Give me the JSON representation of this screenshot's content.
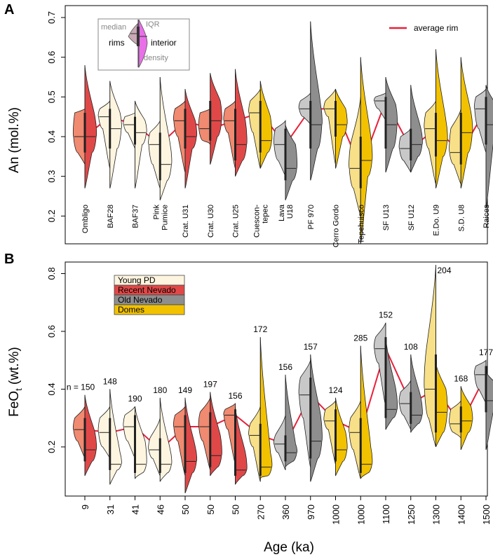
{
  "panels": {
    "a": {
      "letter": "A",
      "ylabel": "An (mol.%)",
      "yticks": [
        "0.2",
        "0.3",
        "0.4",
        "0.5",
        "0.6",
        "0.7"
      ]
    },
    "b": {
      "letter": "B",
      "ylabel_main": "FeO",
      "ylabel_sub": "t",
      "ylabel_tail": " (wt.%)",
      "yticks": [
        "0.2",
        "0.4",
        "0.6",
        "0.8"
      ]
    }
  },
  "xlabel": "Age (ka)",
  "inset_labels": {
    "median": "median",
    "iqr": "IQR",
    "rims": "rims",
    "interior": "interior",
    "density": "density"
  },
  "legend_rim": {
    "label": "average rim",
    "color": "#e8203a"
  },
  "legend_groups": [
    {
      "label": "Young PD",
      "color": "#fdf5e0"
    },
    {
      "label": "Recent Nevado",
      "color": "#e04848"
    },
    {
      "label": "Old Nevado",
      "color": "#8e8e8e"
    },
    {
      "label": "Domes",
      "color": "#f2c200"
    }
  ],
  "n_prefix": "n = ",
  "chart_data": [
    {
      "type": "violin",
      "panel": "A",
      "title": "",
      "xlabel": "",
      "ylabel": "An (mol.%)",
      "ylim": [
        0.13,
        0.73
      ],
      "grid": false,
      "legend": "top-right",
      "samples": [
        {
          "name": "Ombligo",
          "group": "Recent Nevado",
          "rim_median": 0.4,
          "rim_q1": 0.36,
          "rim_q3": 0.46,
          "rim_min": 0.33,
          "rim_max": 0.47,
          "int_median": 0.4,
          "int_q1": 0.36,
          "int_q3": 0.45,
          "int_min": 0.27,
          "int_max": 0.58
        },
        {
          "name": "BAF28",
          "group": "Young PD",
          "rim_median": 0.45,
          "rim_q1": 0.42,
          "rim_q3": 0.47,
          "rim_min": 0.32,
          "rim_max": 0.49,
          "int_median": 0.42,
          "int_q1": 0.37,
          "int_q3": 0.46,
          "int_min": 0.27,
          "int_max": 0.54
        },
        {
          "name": "BAF37",
          "group": "Young PD",
          "rim_median": 0.43,
          "rim_q1": 0.41,
          "rim_q3": 0.45,
          "rim_min": 0.37,
          "rim_max": 0.46,
          "int_median": 0.41,
          "int_q1": 0.38,
          "int_q3": 0.44,
          "int_min": 0.27,
          "int_max": 0.49
        },
        {
          "name": "Pink\nPumice",
          "group": "Young PD",
          "rim_median": 0.38,
          "rim_q1": 0.33,
          "rim_q3": 0.41,
          "rim_min": 0.27,
          "rim_max": 0.44,
          "int_median": 0.33,
          "int_q1": 0.29,
          "int_q3": 0.38,
          "int_min": 0.24,
          "int_max": 0.55
        },
        {
          "name": "Crat. U31",
          "group": "Recent Nevado",
          "rim_median": 0.44,
          "rim_q1": 0.4,
          "rim_q3": 0.47,
          "rim_min": 0.31,
          "rim_max": 0.49,
          "int_median": 0.4,
          "int_q1": 0.37,
          "int_q3": 0.44,
          "int_min": 0.27,
          "int_max": 0.52
        },
        {
          "name": "Crat. U30",
          "group": "Recent Nevado",
          "rim_median": 0.42,
          "rim_q1": 0.39,
          "rim_q3": 0.46,
          "rim_min": 0.38,
          "rim_max": 0.47,
          "int_median": 0.44,
          "int_q1": 0.4,
          "int_q3": 0.49,
          "int_min": 0.33,
          "int_max": 0.56
        },
        {
          "name": "Crat. U25",
          "group": "Recent Nevado",
          "rim_median": 0.44,
          "rim_q1": 0.41,
          "rim_q3": 0.47,
          "rim_min": 0.32,
          "rim_max": 0.49,
          "int_median": 0.38,
          "int_q1": 0.34,
          "int_q3": 0.44,
          "int_min": 0.3,
          "int_max": 0.57
        },
        {
          "name": "Cuescon-\ntepec",
          "group": "Domes",
          "rim_median": 0.46,
          "rim_q1": 0.41,
          "rim_q3": 0.49,
          "rim_min": 0.32,
          "rim_max": 0.52,
          "int_median": 0.39,
          "int_q1": 0.36,
          "int_q3": 0.45,
          "int_min": 0.32,
          "int_max": 0.54
        },
        {
          "name": "Lava\nU18",
          "group": "Old Nevado",
          "rim_median": 0.38,
          "rim_q1": 0.34,
          "rim_q3": 0.42,
          "rim_min": 0.3,
          "rim_max": 0.44,
          "int_median": 0.32,
          "int_q1": 0.29,
          "int_q3": 0.38,
          "int_min": 0.24,
          "int_max": 0.43
        },
        {
          "name": "PF 970",
          "group": "Old Nevado",
          "rim_median": 0.47,
          "rim_q1": 0.45,
          "rim_q3": 0.49,
          "rim_min": 0.43,
          "rim_max": 0.51,
          "int_median": 0.43,
          "int_q1": 0.37,
          "int_q3": 0.48,
          "int_min": 0.29,
          "int_max": 0.69
        },
        {
          "name": "Cerro Gordo",
          "group": "Domes",
          "rim_median": 0.47,
          "rim_q1": 0.45,
          "rim_q3": 0.49,
          "rim_min": 0.33,
          "rim_max": 0.52,
          "int_median": 0.43,
          "int_q1": 0.4,
          "int_q3": 0.47,
          "int_min": 0.32,
          "int_max": 0.52
        },
        {
          "name": "Tepehuisco",
          "group": "Domes",
          "rim_median": 0.32,
          "rim_q1": 0.27,
          "rim_q3": 0.38,
          "rim_min": 0.2,
          "rim_max": 0.5,
          "int_median": 0.34,
          "int_q1": 0.3,
          "int_q3": 0.4,
          "int_min": 0.13,
          "int_max": 0.6
        },
        {
          "name": "SF U13",
          "group": "Old Nevado",
          "rim_median": 0.49,
          "rim_q1": 0.47,
          "rim_q3": 0.5,
          "rim_min": 0.44,
          "rim_max": 0.51,
          "int_median": 0.43,
          "int_q1": 0.37,
          "int_q3": 0.48,
          "int_min": 0.31,
          "int_max": 0.55
        },
        {
          "name": "SF U12",
          "group": "Old Nevado",
          "rim_median": 0.37,
          "rim_q1": 0.34,
          "rim_q3": 0.4,
          "rim_min": 0.31,
          "rim_max": 0.42,
          "int_median": 0.38,
          "int_q1": 0.35,
          "int_q3": 0.42,
          "int_min": 0.31,
          "int_max": 0.53
        },
        {
          "name": "E.Do. U9",
          "group": "Domes",
          "rim_median": 0.42,
          "rim_q1": 0.37,
          "rim_q3": 0.46,
          "rim_min": 0.28,
          "rim_max": 0.49,
          "int_median": 0.39,
          "int_q1": 0.35,
          "int_q3": 0.44,
          "int_min": 0.27,
          "int_max": 0.62
        },
        {
          "name": "S.D. U8",
          "group": "Domes",
          "rim_median": 0.36,
          "rim_q1": 0.33,
          "rim_q3": 0.42,
          "rim_min": 0.28,
          "rim_max": 0.47,
          "int_median": 0.41,
          "int_q1": 0.36,
          "int_q3": 0.46,
          "int_min": 0.27,
          "int_max": 0.6
        },
        {
          "name": "Raices",
          "group": "Old Nevado",
          "rim_median": 0.47,
          "rim_q1": 0.42,
          "rim_q3": 0.5,
          "rim_min": 0.36,
          "rim_max": 0.52,
          "int_median": 0.43,
          "int_q1": 0.38,
          "int_q3": 0.48,
          "int_min": 0.22,
          "int_max": 0.53
        }
      ]
    },
    {
      "type": "violin",
      "panel": "B",
      "title": "",
      "xlabel": "Age (ka)",
      "ylabel": "FeOt (wt.%)",
      "ylim": [
        0.03,
        0.84
      ],
      "grid": false,
      "legend": "top-left",
      "ages": [
        "9",
        "31",
        "41",
        "46",
        "50",
        "50",
        "50",
        "270",
        "360",
        "970",
        "1000",
        "1000",
        "1100",
        "1250",
        "1300",
        "1400",
        "1500"
      ],
      "counts": [
        "150",
        "148",
        "190",
        "180",
        "149",
        "197",
        "156",
        "172",
        "156",
        "157",
        "124",
        "285",
        "152",
        "108",
        "204",
        "168",
        "177"
      ],
      "samples": [
        {
          "rim_median": 0.26,
          "rim_q1": 0.22,
          "rim_q3": 0.3,
          "rim_min": 0.16,
          "rim_max": 0.34,
          "int_median": 0.19,
          "int_q1": 0.15,
          "int_q3": 0.25,
          "int_min": 0.1,
          "int_max": 0.38
        },
        {
          "rim_median": 0.25,
          "rim_q1": 0.2,
          "rim_q3": 0.3,
          "rim_min": 0.16,
          "rim_max": 0.34,
          "int_median": 0.14,
          "int_q1": 0.12,
          "int_q3": 0.18,
          "int_min": 0.07,
          "int_max": 0.4
        },
        {
          "rim_median": 0.27,
          "rim_q1": 0.22,
          "rim_q3": 0.31,
          "rim_min": 0.16,
          "rim_max": 0.34,
          "int_median": 0.14,
          "int_q1": 0.11,
          "int_q3": 0.22,
          "int_min": 0.09,
          "int_max": 0.34
        },
        {
          "rim_median": 0.19,
          "rim_q1": 0.16,
          "rim_q3": 0.23,
          "rim_min": 0.1,
          "rim_max": 0.3,
          "int_median": 0.14,
          "int_q1": 0.11,
          "int_q3": 0.19,
          "int_min": 0.08,
          "int_max": 0.37
        },
        {
          "rim_median": 0.27,
          "rim_q1": 0.22,
          "rim_q3": 0.31,
          "rim_min": 0.1,
          "rim_max": 0.34,
          "int_median": 0.15,
          "int_q1": 0.11,
          "int_q3": 0.2,
          "int_min": 0.04,
          "int_max": 0.37
        },
        {
          "rim_median": 0.27,
          "rim_q1": 0.22,
          "rim_q3": 0.32,
          "rim_min": 0.12,
          "rim_max": 0.37,
          "int_median": 0.17,
          "int_q1": 0.13,
          "int_q3": 0.24,
          "int_min": 0.1,
          "int_max": 0.39
        },
        {
          "rim_median": 0.31,
          "rim_q1": 0.26,
          "rim_q3": 0.33,
          "rim_min": 0.14,
          "rim_max": 0.35,
          "int_median": 0.12,
          "int_q1": 0.1,
          "int_q3": 0.18,
          "int_min": 0.07,
          "int_max": 0.34
        },
        {
          "rim_median": 0.24,
          "rim_q1": 0.2,
          "rim_q3": 0.28,
          "rim_min": 0.08,
          "rim_max": 0.34,
          "int_median": 0.13,
          "int_q1": 0.1,
          "int_q3": 0.18,
          "int_min": 0.09,
          "int_max": 0.58
        },
        {
          "rim_median": 0.21,
          "rim_q1": 0.18,
          "rim_q3": 0.24,
          "rim_min": 0.12,
          "rim_max": 0.31,
          "int_median": 0.18,
          "int_q1": 0.15,
          "int_q3": 0.21,
          "int_min": 0.13,
          "int_max": 0.45
        },
        {
          "rim_median": 0.38,
          "rim_q1": 0.3,
          "rim_q3": 0.44,
          "rim_min": 0.13,
          "rim_max": 0.5,
          "int_median": 0.22,
          "int_q1": 0.16,
          "int_q3": 0.31,
          "int_min": 0.08,
          "int_max": 0.52
        },
        {
          "rim_median": 0.29,
          "rim_q1": 0.26,
          "rim_q3": 0.33,
          "rim_min": 0.14,
          "rim_max": 0.36,
          "int_median": 0.19,
          "int_q1": 0.15,
          "int_q3": 0.25,
          "int_min": 0.1,
          "int_max": 0.37
        },
        {
          "rim_median": 0.25,
          "rim_q1": 0.19,
          "rim_q3": 0.3,
          "rim_min": 0.09,
          "rim_max": 0.36,
          "int_median": 0.14,
          "int_q1": 0.11,
          "int_q3": 0.2,
          "int_min": 0.09,
          "int_max": 0.55
        },
        {
          "rim_median": 0.54,
          "rim_q1": 0.49,
          "rim_q3": 0.58,
          "rim_min": 0.34,
          "rim_max": 0.63,
          "int_median": 0.33,
          "int_q1": 0.3,
          "int_q3": 0.4,
          "int_min": 0.26,
          "int_max": 0.58
        },
        {
          "rim_median": 0.35,
          "rim_q1": 0.31,
          "rim_q3": 0.39,
          "rim_min": 0.26,
          "rim_max": 0.43,
          "int_median": 0.31,
          "int_q1": 0.28,
          "int_q3": 0.37,
          "int_min": 0.25,
          "int_max": 0.52
        },
        {
          "rim_median": 0.4,
          "rim_q1": 0.3,
          "rim_q3": 0.52,
          "rim_min": 0.2,
          "rim_max": 0.83,
          "int_median": 0.32,
          "int_q1": 0.25,
          "int_q3": 0.4,
          "int_min": 0.2,
          "int_max": 0.49
        },
        {
          "rim_median": 0.28,
          "rim_q1": 0.25,
          "rim_q3": 0.33,
          "rim_min": 0.23,
          "rim_max": 0.36,
          "int_median": 0.29,
          "int_q1": 0.25,
          "int_q3": 0.34,
          "int_min": 0.19,
          "int_max": 0.41
        },
        {
          "rim_median": 0.45,
          "rim_q1": 0.4,
          "rim_q3": 0.48,
          "rim_min": 0.35,
          "rim_max": 0.5,
          "int_median": 0.36,
          "int_q1": 0.32,
          "int_q3": 0.42,
          "int_min": 0.19,
          "int_max": 0.46
        }
      ]
    }
  ],
  "group_colors": {
    "Young PD": {
      "rim": "#fdf5e0",
      "int": "#fdf5e0"
    },
    "Recent Nevado": {
      "rim": "#f08a70",
      "int": "#e04848"
    },
    "Old Nevado": {
      "rim": "#c8c8c8",
      "int": "#8e8e8e"
    },
    "Domes": {
      "rim": "#f7e088",
      "int": "#f2c200"
    }
  },
  "panelB_groups": [
    "Recent Nevado",
    "Young PD",
    "Young PD",
    "Young PD",
    "Recent Nevado",
    "Recent Nevado",
    "Recent Nevado",
    "Domes",
    "Old Nevado",
    "Old Nevado",
    "Domes",
    "Domes",
    "Old Nevado",
    "Old Nevado",
    "Domes",
    "Domes",
    "Old Nevado"
  ],
  "average_rim_color": "#e8203a"
}
